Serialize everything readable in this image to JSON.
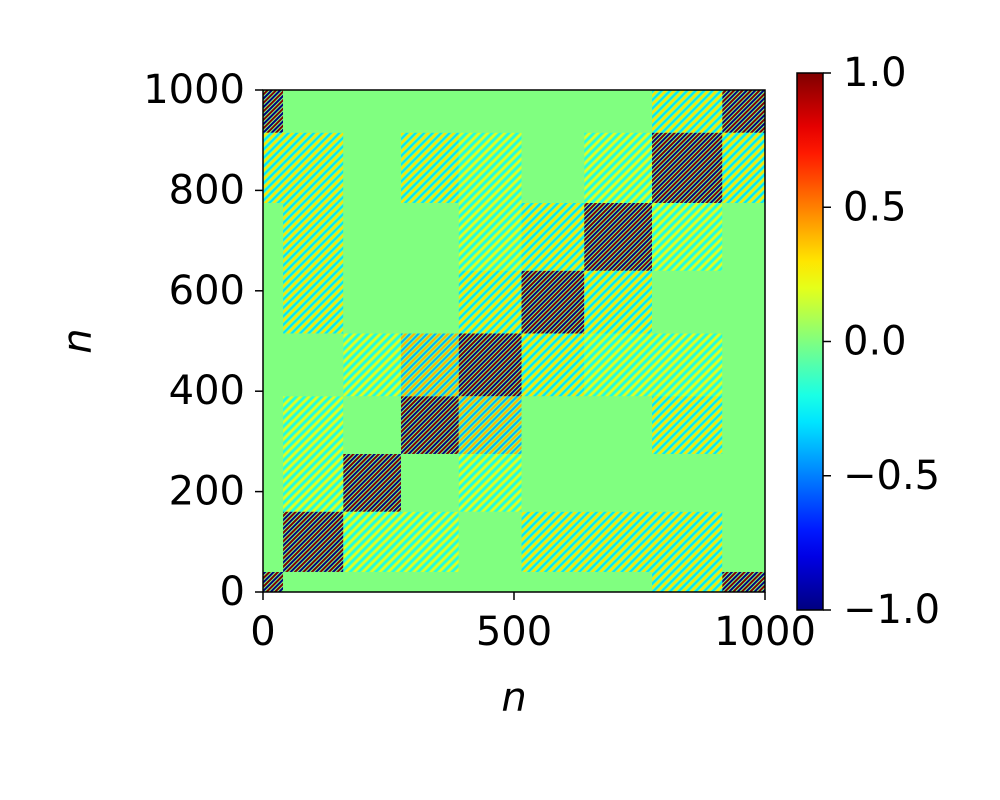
{
  "chart_data": {
    "type": "heatmap",
    "xlabel": "n",
    "ylabel": "n",
    "x_edges": [
      0,
      40,
      160,
      275,
      390,
      515,
      640,
      775,
      915,
      1000
    ],
    "y_edges": [
      0,
      40,
      160,
      275,
      390,
      515,
      640,
      775,
      915,
      1000
    ],
    "values": [
      [
        1,
        0,
        0,
        0,
        0,
        0,
        0,
        0.3,
        1
      ],
      [
        0,
        1,
        0.2,
        0.2,
        0,
        0.3,
        0.3,
        0.3,
        0
      ],
      [
        0,
        0.2,
        1,
        0,
        0.2,
        0,
        0,
        0,
        0
      ],
      [
        0,
        0.2,
        0,
        1,
        0.4,
        0,
        0,
        0.3,
        0
      ],
      [
        0,
        0,
        0.2,
        0.4,
        1,
        0.3,
        0.2,
        0.2,
        0
      ],
      [
        0,
        0.3,
        0,
        0,
        0.3,
        1,
        0.3,
        0,
        0
      ],
      [
        0,
        0.3,
        0,
        0,
        0.2,
        0.3,
        1,
        0.2,
        0
      ],
      [
        0.3,
        0.3,
        0,
        0.3,
        0.2,
        0,
        0.2,
        1,
        0.3
      ],
      [
        1,
        0,
        0,
        0,
        0,
        0,
        0,
        0.3,
        1
      ]
    ],
    "colormap": "jet",
    "xlim": [
      0,
      1000
    ],
    "xticks": [
      0,
      500,
      1000
    ],
    "ylim": [
      0,
      1000
    ],
    "yticks": [
      0,
      200,
      400,
      600,
      800,
      1000
    ],
    "clim": [
      -1,
      1
    ],
    "cticks": [
      {
        "value": -1,
        "label": "−1.0"
      },
      {
        "value": -0.5,
        "label": "−0.5"
      },
      {
        "value": 0,
        "label": "0.0"
      },
      {
        "value": 0.5,
        "label": "0.5"
      },
      {
        "value": 1,
        "label": "1.0"
      }
    ]
  }
}
